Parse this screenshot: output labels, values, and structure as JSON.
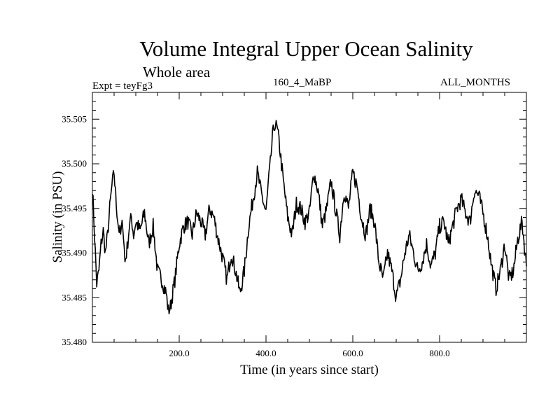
{
  "chart_data": {
    "type": "line",
    "title": "Volume Integral Upper Ocean Salinity",
    "subtitle": "Whole area",
    "left_label": "Expt = teyFg3",
    "center_label": "160_4_MaBP",
    "right_label": "ALL_MONTHS",
    "xlabel": "Time (in years since start)",
    "ylabel": "Salinity (in PSU)",
    "xlim": [
      0,
      1000
    ],
    "ylim": [
      35.48,
      35.508
    ],
    "xticks": [
      200,
      400,
      600,
      800
    ],
    "xtick_labels": [
      "200.0",
      "400.0",
      "600.0",
      "800.0"
    ],
    "yticks": [
      35.48,
      35.485,
      35.49,
      35.495,
      35.5,
      35.505
    ],
    "ytick_labels": [
      "35.480",
      "35.485",
      "35.490",
      "35.495",
      "35.500",
      "35.505"
    ],
    "x": [
      0,
      5,
      10,
      15,
      20,
      25,
      30,
      35,
      40,
      45,
      50,
      55,
      60,
      65,
      70,
      75,
      80,
      85,
      90,
      95,
      100,
      110,
      120,
      130,
      140,
      150,
      160,
      170,
      175,
      180,
      190,
      200,
      210,
      220,
      230,
      240,
      250,
      260,
      270,
      280,
      290,
      300,
      310,
      320,
      330,
      340,
      350,
      360,
      370,
      380,
      390,
      400,
      405,
      410,
      415,
      420,
      425,
      430,
      440,
      450,
      460,
      470,
      480,
      490,
      500,
      510,
      520,
      530,
      540,
      550,
      560,
      570,
      580,
      590,
      600,
      610,
      620,
      630,
      640,
      650,
      660,
      670,
      680,
      690,
      700,
      710,
      720,
      730,
      740,
      750,
      760,
      770,
      780,
      790,
      800,
      810,
      820,
      830,
      840,
      850,
      860,
      870,
      880,
      890,
      900,
      910,
      920,
      930,
      940,
      950,
      960,
      970,
      980,
      990,
      1000
    ],
    "values": [
      35.4975,
      35.492,
      35.4865,
      35.488,
      35.491,
      35.4925,
      35.49,
      35.492,
      35.495,
      35.4975,
      35.499,
      35.4955,
      35.493,
      35.492,
      35.4935,
      35.489,
      35.4905,
      35.493,
      35.494,
      35.492,
      35.4935,
      35.4925,
      35.4945,
      35.491,
      35.493,
      35.488,
      35.487,
      35.4855,
      35.4835,
      35.484,
      35.487,
      35.491,
      35.493,
      35.4935,
      35.492,
      35.4945,
      35.4935,
      35.492,
      35.495,
      35.494,
      35.4915,
      35.4895,
      35.487,
      35.49,
      35.488,
      35.4855,
      35.488,
      35.493,
      35.496,
      35.499,
      35.4965,
      35.4945,
      35.4975,
      35.5,
      35.503,
      35.5045,
      35.504,
      35.5025,
      35.498,
      35.494,
      35.492,
      35.4955,
      35.495,
      35.4935,
      35.4945,
      35.499,
      35.497,
      35.493,
      35.495,
      35.498,
      35.495,
      35.492,
      35.497,
      35.495,
      35.499,
      35.4975,
      35.494,
      35.492,
      35.495,
      35.4935,
      35.489,
      35.487,
      35.49,
      35.488,
      35.485,
      35.487,
      35.49,
      35.492,
      35.49,
      35.488,
      35.489,
      35.491,
      35.4885,
      35.49,
      35.493,
      35.4935,
      35.491,
      35.493,
      35.495,
      35.496,
      35.4945,
      35.4935,
      35.497,
      35.4965,
      35.4945,
      35.492,
      35.4885,
      35.486,
      35.488,
      35.491,
      35.487,
      35.488,
      35.4915,
      35.4935,
      35.4885
    ]
  }
}
